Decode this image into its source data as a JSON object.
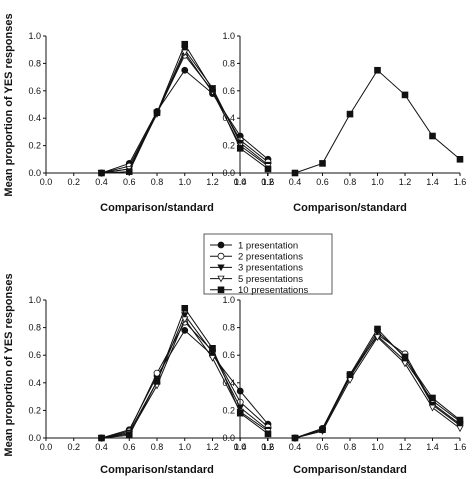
{
  "ylabel": "Mean proportion of YES responses",
  "legend": {
    "entries": [
      {
        "name": "1 presentation",
        "marker": "circle-filled"
      },
      {
        "name": "2 presentations",
        "marker": "circle-open"
      },
      {
        "name": "3 presentations",
        "marker": "triangle-down-filled"
      },
      {
        "name": "5 presentations",
        "marker": "triangle-down-open"
      },
      {
        "name": "10 presentations",
        "marker": "square-filled"
      }
    ]
  },
  "chart_data": [
    {
      "type": "line",
      "panel": "top-left",
      "xlabel": "Comparison/standard",
      "xlim": [
        0.0,
        1.6
      ],
      "ylim": [
        0.0,
        1.0
      ],
      "xticks": [
        "0.0",
        "0.2",
        "0.4",
        "0.6",
        "0.8",
        "1.0",
        "1.2",
        "1.4",
        "1.6"
      ],
      "yticks": [
        "0.0",
        "0.2",
        "0.4",
        "0.6",
        "0.8",
        "1.0"
      ],
      "x": [
        0.4,
        0.6,
        0.8,
        1.0,
        1.2,
        1.4,
        1.6
      ],
      "series": [
        {
          "name": "1 presentation",
          "values": [
            0.0,
            0.07,
            0.45,
            0.75,
            0.58,
            0.27,
            0.1
          ]
        },
        {
          "name": "2 presentations",
          "values": [
            0.0,
            0.05,
            0.44,
            0.86,
            0.6,
            0.24,
            0.08
          ]
        },
        {
          "name": "3 presentations",
          "values": [
            0.0,
            0.03,
            0.44,
            0.9,
            0.62,
            0.22,
            0.06
          ]
        },
        {
          "name": "5 presentations",
          "values": [
            0.0,
            0.03,
            0.43,
            0.88,
            0.59,
            0.2,
            0.05
          ]
        },
        {
          "name": "10 presentations",
          "values": [
            0.0,
            0.01,
            0.44,
            0.94,
            0.61,
            0.18,
            0.03
          ]
        }
      ]
    },
    {
      "type": "line",
      "panel": "top-right",
      "xlabel": "Comparison/standard",
      "xlim": [
        0.0,
        1.6
      ],
      "ylim": [
        0.0,
        1.0
      ],
      "xticks": [
        "0.0",
        "0.2",
        "0.4",
        "0.6",
        "0.8",
        "1.0",
        "1.2",
        "1.4",
        "1.6"
      ],
      "yticks": [
        "0.0",
        "0.2",
        "0.4",
        "0.6",
        "0.8",
        "1.0"
      ],
      "x": [
        0.4,
        0.6,
        0.8,
        1.0,
        1.2,
        1.4,
        1.6
      ],
      "series": [
        {
          "name": "",
          "values": [
            0.0,
            0.07,
            0.43,
            0.75,
            0.57,
            0.27,
            0.1
          ]
        }
      ]
    },
    {
      "type": "line",
      "panel": "bottom-left",
      "xlabel": "Comparison/standard",
      "xlim": [
        0.0,
        1.6
      ],
      "ylim": [
        0.0,
        1.0
      ],
      "xticks": [
        "0.0",
        "0.2",
        "0.4",
        "0.6",
        "0.8",
        "1.0",
        "1.2",
        "1.4",
        "1.6"
      ],
      "yticks": [
        "0.0",
        "0.2",
        "0.4",
        "0.6",
        "0.8",
        "1.0"
      ],
      "x": [
        0.4,
        0.6,
        0.8,
        1.0,
        1.2,
        1.4,
        1.6
      ],
      "series": [
        {
          "name": "1 presentation",
          "values": [
            0.0,
            0.06,
            0.45,
            0.78,
            0.6,
            0.34,
            0.1
          ]
        },
        {
          "name": "2 presentations",
          "values": [
            0.0,
            0.05,
            0.47,
            0.84,
            0.63,
            0.26,
            0.08
          ]
        },
        {
          "name": "3 presentations",
          "values": [
            0.0,
            0.04,
            0.41,
            0.89,
            0.62,
            0.22,
            0.06
          ]
        },
        {
          "name": "5 presentations",
          "values": [
            0.0,
            0.03,
            0.38,
            0.86,
            0.58,
            0.19,
            0.05
          ]
        },
        {
          "name": "10 presentations",
          "values": [
            0.0,
            0.02,
            0.41,
            0.94,
            0.65,
            0.18,
            0.03
          ]
        }
      ]
    },
    {
      "type": "line",
      "panel": "bottom-right",
      "xlabel": "Comparison/standard",
      "xlim": [
        0.0,
        1.6
      ],
      "ylim": [
        0.0,
        1.0
      ],
      "xticks": [
        "0.0",
        "0.2",
        "0.4",
        "0.6",
        "0.8",
        "1.0",
        "1.2",
        "1.4",
        "1.6"
      ],
      "yticks": [
        "0.0",
        "0.2",
        "0.4",
        "0.6",
        "0.8",
        "1.0"
      ],
      "x": [
        0.4,
        0.6,
        0.8,
        1.0,
        1.2,
        1.4,
        1.6
      ],
      "series": [
        {
          "name": "1 presentation",
          "values": [
            0.0,
            0.07,
            0.46,
            0.74,
            0.56,
            0.27,
            0.12
          ]
        },
        {
          "name": "2 presentations",
          "values": [
            0.0,
            0.06,
            0.44,
            0.75,
            0.61,
            0.25,
            0.1
          ]
        },
        {
          "name": "3 presentations",
          "values": [
            0.0,
            0.06,
            0.45,
            0.77,
            0.59,
            0.24,
            0.09
          ]
        },
        {
          "name": "5 presentations",
          "values": [
            0.0,
            0.05,
            0.42,
            0.73,
            0.54,
            0.22,
            0.07
          ]
        },
        {
          "name": "10 presentations",
          "values": [
            0.0,
            0.06,
            0.46,
            0.79,
            0.58,
            0.29,
            0.13
          ]
        }
      ]
    }
  ]
}
